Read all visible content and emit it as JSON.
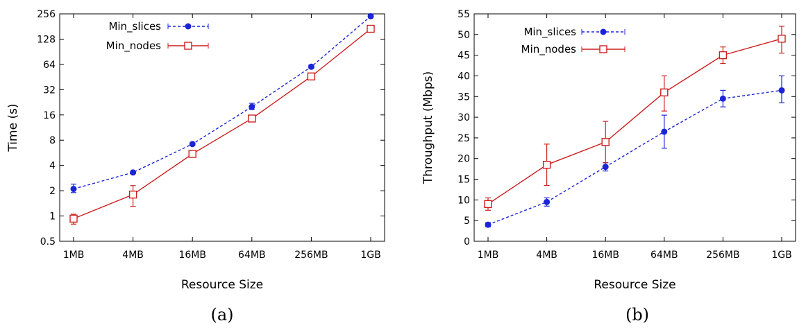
{
  "chart_data": [
    {
      "type": "line",
      "caption": "(a)",
      "xlabel": "Resource Size",
      "ylabel": "Time (s)",
      "categories": [
        "1MB",
        "4MB",
        "16MB",
        "64MB",
        "256MB",
        "1GB"
      ],
      "y_scale": "log2",
      "ylim": [
        0.5,
        256
      ],
      "y_ticks": [
        "0.5",
        "1",
        "2",
        "4",
        "8",
        "16",
        "32",
        "64",
        "128",
        "256"
      ],
      "y_tick_values": [
        0.5,
        1,
        2,
        4,
        8,
        16,
        32,
        64,
        128,
        256
      ],
      "legend_position": "top-left",
      "series": [
        {
          "name": "Min_slices",
          "style": "dashed",
          "marker": "filled-circle",
          "color": "#1c24d8",
          "values": [
            2.1,
            3.3,
            7.2,
            20,
            60,
            240
          ],
          "err_low": [
            1.9,
            3.2,
            7.0,
            18.5,
            57,
            230
          ],
          "err_high": [
            2.4,
            3.4,
            7.4,
            22,
            63,
            250
          ]
        },
        {
          "name": "Min_nodes",
          "style": "solid",
          "marker": "open-square",
          "color": "#cc1f1f",
          "values": [
            0.93,
            1.8,
            5.5,
            14.5,
            46,
            170
          ],
          "err_low": [
            0.8,
            1.3,
            5.0,
            13.5,
            44,
            160
          ],
          "err_high": [
            1.05,
            2.3,
            6.0,
            15.5,
            48,
            180
          ]
        }
      ]
    },
    {
      "type": "line",
      "caption": "(b)",
      "xlabel": "Resource Size",
      "ylabel": "Throughput (Mbps)",
      "categories": [
        "1MB",
        "4MB",
        "16MB",
        "64MB",
        "256MB",
        "1GB"
      ],
      "ylim": [
        0,
        55
      ],
      "y_ticks": [
        "0",
        "5",
        "10",
        "15",
        "20",
        "25",
        "30",
        "35",
        "40",
        "45",
        "50",
        "55"
      ],
      "y_tick_values": [
        0,
        5,
        10,
        15,
        20,
        25,
        30,
        35,
        40,
        45,
        50,
        55
      ],
      "legend_position": "top-left",
      "series": [
        {
          "name": "Min_slices",
          "style": "dashed",
          "marker": "filled-circle",
          "color": "#1c24d8",
          "values": [
            4,
            9.5,
            18,
            26.5,
            34.5,
            36.5
          ],
          "err_low": [
            3.5,
            8.5,
            17,
            22.5,
            32.5,
            33.5
          ],
          "err_high": [
            4.5,
            10.5,
            19,
            30.5,
            36.5,
            40
          ]
        },
        {
          "name": "Min_nodes",
          "style": "solid",
          "marker": "open-square",
          "color": "#cc1f1f",
          "values": [
            9,
            18.5,
            24,
            36,
            45,
            49
          ],
          "err_low": [
            7.5,
            13.5,
            19,
            31.5,
            43,
            45.5
          ],
          "err_high": [
            10.5,
            23.5,
            29,
            40,
            47,
            52
          ]
        }
      ]
    }
  ]
}
